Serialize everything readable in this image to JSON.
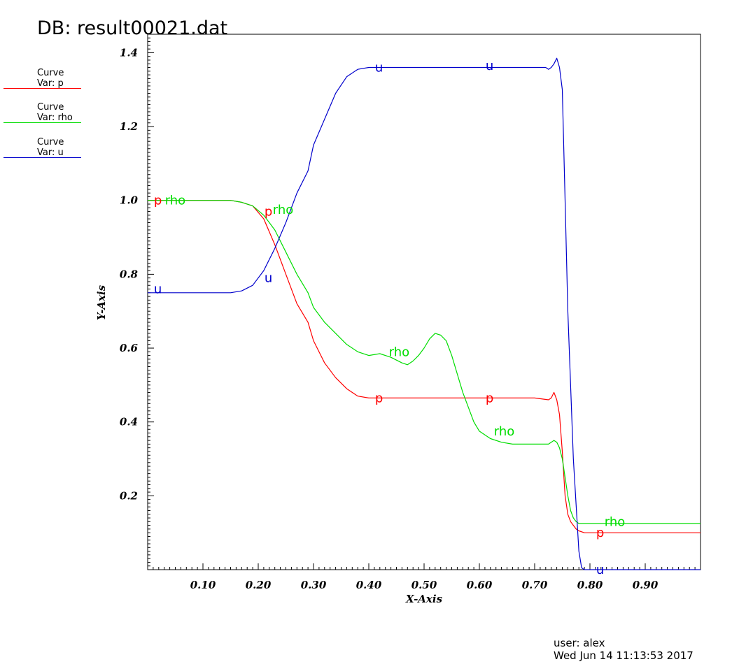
{
  "header": {
    "title": "DB: result00021.dat"
  },
  "legend": [
    {
      "name": "Curve",
      "var": "Var: p",
      "color": "#ff0000"
    },
    {
      "name": "Curve",
      "var": "Var: rho",
      "color": "#00dd00"
    },
    {
      "name": "Curve",
      "var": "Var: u",
      "color": "#0000cc"
    }
  ],
  "footer": {
    "user": "user: alex",
    "date": "Wed Jun 14 11:13:53 2017"
  },
  "chart_data": {
    "type": "line",
    "xlabel": "X-Axis",
    "ylabel": "Y-Axis",
    "xlim": [
      0.0,
      1.0
    ],
    "ylim": [
      0.0,
      1.45
    ],
    "xticks": [
      0.1,
      0.2,
      0.3,
      0.4,
      0.5,
      0.6,
      0.7,
      0.8,
      0.9
    ],
    "xtick_labels": [
      "0.10",
      "0.20",
      "0.30",
      "0.40",
      "0.50",
      "0.60",
      "0.70",
      "0.80",
      "0.90"
    ],
    "yticks": [
      0.2,
      0.4,
      0.6,
      0.8,
      1.0,
      1.2,
      1.4
    ],
    "ytick_labels": [
      "0.2",
      "0.4",
      "0.6",
      "0.8",
      "1.0",
      "1.2",
      "1.4"
    ],
    "grid": false,
    "series": [
      {
        "name": "p",
        "color": "#ff0000",
        "x": [
          0.0,
          0.15,
          0.17,
          0.19,
          0.21,
          0.23,
          0.25,
          0.27,
          0.29,
          0.3,
          0.32,
          0.34,
          0.36,
          0.38,
          0.4,
          0.45,
          0.5,
          0.6,
          0.7,
          0.725,
          0.73,
          0.735,
          0.74,
          0.745,
          0.75,
          0.755,
          0.76,
          0.765,
          0.77,
          0.775,
          0.78,
          0.79,
          0.81,
          1.0
        ],
        "y": [
          1.0,
          1.0,
          0.995,
          0.985,
          0.95,
          0.88,
          0.8,
          0.72,
          0.67,
          0.62,
          0.56,
          0.52,
          0.49,
          0.47,
          0.465,
          0.465,
          0.465,
          0.465,
          0.465,
          0.46,
          0.465,
          0.48,
          0.46,
          0.42,
          0.32,
          0.2,
          0.15,
          0.13,
          0.12,
          0.11,
          0.105,
          0.1,
          0.1,
          0.1
        ],
        "labels": [
          {
            "x": 0.01,
            "y": 1.0
          },
          {
            "x": 0.21,
            "y": 0.97
          },
          {
            "x": 0.41,
            "y": 0.465
          },
          {
            "x": 0.61,
            "y": 0.465
          },
          {
            "x": 0.81,
            "y": 0.1
          }
        ]
      },
      {
        "name": "rho",
        "color": "#00dd00",
        "x": [
          0.0,
          0.15,
          0.17,
          0.19,
          0.21,
          0.23,
          0.25,
          0.27,
          0.29,
          0.3,
          0.32,
          0.34,
          0.36,
          0.38,
          0.4,
          0.42,
          0.44,
          0.46,
          0.47,
          0.48,
          0.49,
          0.5,
          0.51,
          0.52,
          0.53,
          0.54,
          0.55,
          0.56,
          0.57,
          0.58,
          0.59,
          0.6,
          0.62,
          0.64,
          0.66,
          0.7,
          0.725,
          0.73,
          0.735,
          0.74,
          0.745,
          0.75,
          0.755,
          0.76,
          0.765,
          0.77,
          0.775,
          0.78,
          0.79,
          0.81,
          1.0
        ],
        "y": [
          1.0,
          1.0,
          0.995,
          0.985,
          0.96,
          0.92,
          0.86,
          0.8,
          0.75,
          0.71,
          0.67,
          0.64,
          0.61,
          0.59,
          0.58,
          0.585,
          0.575,
          0.56,
          0.555,
          0.565,
          0.58,
          0.6,
          0.625,
          0.64,
          0.635,
          0.62,
          0.58,
          0.53,
          0.48,
          0.44,
          0.4,
          0.375,
          0.355,
          0.345,
          0.34,
          0.34,
          0.34,
          0.345,
          0.35,
          0.345,
          0.33,
          0.3,
          0.25,
          0.2,
          0.16,
          0.14,
          0.13,
          0.125,
          0.125,
          0.125,
          0.125
        ],
        "labels": [
          {
            "x": 0.03,
            "y": 1.0
          },
          {
            "x": 0.225,
            "y": 0.975
          },
          {
            "x": 0.435,
            "y": 0.59
          },
          {
            "x": 0.625,
            "y": 0.375
          },
          {
            "x": 0.825,
            "y": 0.13
          }
        ]
      },
      {
        "name": "u",
        "color": "#0000cc",
        "x": [
          0.0,
          0.15,
          0.17,
          0.19,
          0.21,
          0.23,
          0.25,
          0.27,
          0.29,
          0.3,
          0.32,
          0.34,
          0.36,
          0.38,
          0.4,
          0.45,
          0.5,
          0.6,
          0.7,
          0.72,
          0.725,
          0.73,
          0.735,
          0.74,
          0.745,
          0.75,
          0.755,
          0.76,
          0.77,
          0.78,
          0.785,
          0.79,
          0.81,
          1.0
        ],
        "y": [
          0.75,
          0.75,
          0.755,
          0.77,
          0.81,
          0.87,
          0.94,
          1.02,
          1.08,
          1.15,
          1.22,
          1.29,
          1.335,
          1.355,
          1.36,
          1.36,
          1.36,
          1.36,
          1.36,
          1.36,
          1.355,
          1.36,
          1.37,
          1.385,
          1.36,
          1.3,
          1.0,
          0.7,
          0.3,
          0.05,
          0.005,
          0.0,
          0.0,
          0.0
        ],
        "labels": [
          {
            "x": 0.01,
            "y": 0.76
          },
          {
            "x": 0.21,
            "y": 0.79
          },
          {
            "x": 0.41,
            "y": 1.36
          },
          {
            "x": 0.61,
            "y": 1.365
          },
          {
            "x": 0.81,
            "y": 0.0
          }
        ]
      }
    ]
  }
}
